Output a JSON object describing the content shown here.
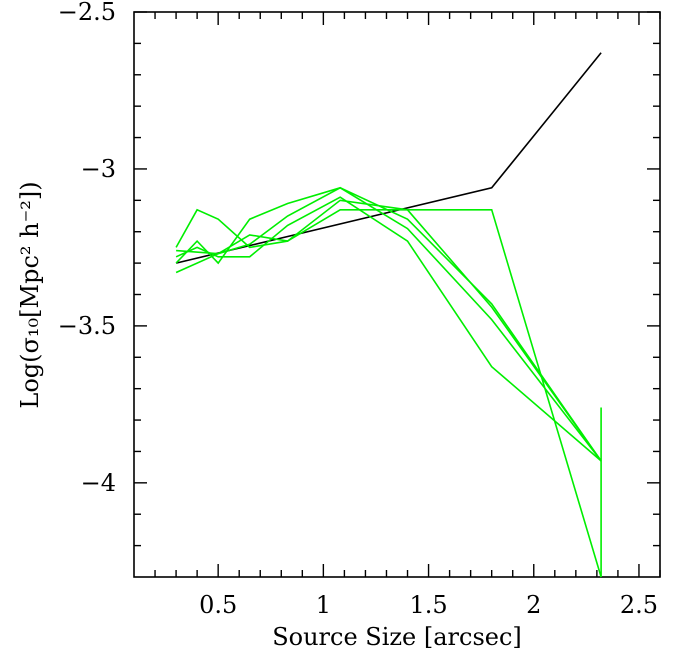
{
  "chart_data": {
    "type": "line",
    "title": "",
    "xlabel": "Source Size [arcsec]",
    "ylabel": "Log(σ₁₀[Mpc² h⁻²])",
    "xlim": [
      0.1,
      2.6
    ],
    "ylim": [
      -4.3,
      -2.5
    ],
    "x_ticks": [
      0.5,
      1,
      1.5,
      2,
      2.5
    ],
    "x_tick_labels": [
      "0.5",
      "1",
      "1.5",
      "2",
      "2.5"
    ],
    "y_ticks": [
      -2.5,
      -3,
      -3.5,
      -4
    ],
    "y_tick_labels": [
      "−2.5",
      "−3",
      "−3.5",
      "−4"
    ],
    "grid": false,
    "colors": {
      "black_line": "#000000",
      "green_lines": "#00ee00"
    },
    "series": [
      {
        "color": "#000000",
        "x": [
          0.3,
          1.8,
          2.32
        ],
        "y": [
          -3.3,
          -3.06,
          -2.63
        ]
      },
      {
        "color": "#00ee00",
        "x": [
          0.3,
          0.5,
          0.65,
          0.83,
          1.08,
          1.4,
          1.8,
          2.32
        ],
        "y": [
          -3.33,
          -3.27,
          -3.21,
          -3.23,
          -3.13,
          -3.13,
          -3.13,
          -4.3
        ]
      },
      {
        "color": "#00ee00",
        "x": [
          0.3,
          0.4,
          0.5,
          0.65,
          0.83,
          1.08,
          1.4,
          1.8,
          2.32
        ],
        "y": [
          -3.25,
          -3.13,
          -3.16,
          -3.25,
          -3.23,
          -3.1,
          -3.13,
          -3.44,
          -3.93
        ]
      },
      {
        "color": "#00ee00",
        "x": [
          0.3,
          0.5,
          0.65,
          0.83,
          1.08,
          1.4,
          1.8,
          2.32
        ],
        "y": [
          -3.26,
          -3.27,
          -3.24,
          -3.15,
          -3.06,
          -3.16,
          -3.43,
          -3.93
        ]
      },
      {
        "color": "#00ee00",
        "x": [
          0.3,
          0.4,
          0.5,
          0.65,
          0.83,
          1.08,
          1.4,
          1.8,
          2.32
        ],
        "y": [
          -3.3,
          -3.23,
          -3.3,
          -3.16,
          -3.11,
          -3.06,
          -3.19,
          -3.48,
          -3.93
        ]
      },
      {
        "color": "#00ee00",
        "x": [
          0.3,
          0.4,
          0.5,
          0.65,
          0.83,
          1.08,
          1.4,
          1.8,
          2.32
        ],
        "y": [
          -3.28,
          -3.25,
          -3.28,
          -3.28,
          -3.18,
          -3.09,
          -3.23,
          -3.63,
          -3.93
        ]
      },
      {
        "color": "#00ee00",
        "x": [
          2.32,
          2.32
        ],
        "y": [
          -3.76,
          -4.3
        ]
      }
    ]
  }
}
